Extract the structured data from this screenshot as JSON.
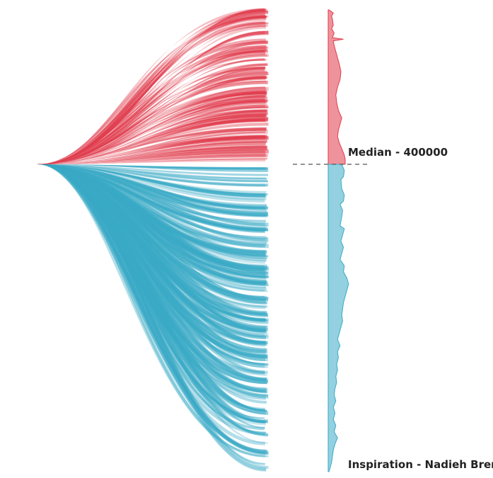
{
  "chart_data": {
    "type": "area",
    "median_label": "Median - 400000",
    "credit_label": "Inspiration - Nadieh Bremer",
    "median_value": 400000,
    "colors": {
      "above_median": "#e03a4b",
      "below_median": "#3aaac6",
      "median_line": "#555555",
      "text": "#222222"
    },
    "above_median": {
      "stream_count": 150,
      "end_fractions": [
        0.0,
        0.02,
        0.05,
        0.09,
        0.11,
        0.15,
        0.18,
        0.21,
        0.25,
        0.27,
        0.3,
        0.33,
        0.36,
        0.39,
        0.42,
        0.45,
        0.48,
        0.52,
        0.55,
        0.58,
        0.61,
        0.64,
        0.67,
        0.7,
        0.73,
        0.76,
        0.79,
        0.82,
        0.85,
        0.88,
        0.91,
        0.94,
        0.97,
        1.0
      ],
      "end_weights": [
        0.5,
        0.6,
        1.0,
        0.5,
        0.9,
        1.2,
        0.6,
        0.8,
        0.7,
        1.1,
        0.6,
        0.9,
        1.3,
        0.7,
        0.9,
        1.0,
        0.8,
        1.1,
        0.9,
        1.0,
        0.8,
        1.2,
        1.0,
        0.9,
        1.1,
        0.8,
        1.0,
        0.9,
        1.2,
        1.0,
        1.1,
        0.9,
        1.0,
        0.8
      ]
    },
    "below_median": {
      "stream_count": 260,
      "end_fractions": [
        0.0,
        0.03,
        0.05,
        0.08,
        0.1,
        0.13,
        0.15,
        0.18,
        0.2,
        0.23,
        0.25,
        0.28,
        0.3,
        0.33,
        0.35,
        0.38,
        0.4,
        0.43,
        0.45,
        0.48,
        0.5,
        0.53,
        0.55,
        0.58,
        0.6,
        0.62,
        0.65,
        0.68,
        0.7,
        0.73,
        0.75,
        0.78,
        0.8,
        0.83,
        0.85,
        0.88,
        0.9,
        0.93,
        0.95,
        0.98,
        1.0
      ],
      "end_weights": [
        1.2,
        1.0,
        1.1,
        1.0,
        1.0,
        1.2,
        0.9,
        1.0,
        1.1,
        0.9,
        1.0,
        1.1,
        1.0,
        0.9,
        1.1,
        1.0,
        1.0,
        1.2,
        1.0,
        1.1,
        1.0,
        0.9,
        1.0,
        1.0,
        0.8,
        0.9,
        1.0,
        0.7,
        0.9,
        0.6,
        0.8,
        0.6,
        0.7,
        0.5,
        0.6,
        0.5,
        0.6,
        0.5,
        0.5,
        0.4,
        0.4
      ]
    },
    "density_above": [
      {
        "y": 0.0,
        "w": 0.05
      },
      {
        "y": 0.02,
        "w": 0.3
      },
      {
        "y": 0.04,
        "w": 0.2
      },
      {
        "y": 0.06,
        "w": 0.25
      },
      {
        "y": 0.1,
        "w": 0.3
      },
      {
        "y": 0.12,
        "w": 0.2
      },
      {
        "y": 0.15,
        "w": 0.35
      },
      {
        "y": 0.18,
        "w": 0.25
      },
      {
        "y": 0.19,
        "w": 0.9
      },
      {
        "y": 0.2,
        "w": 0.3
      },
      {
        "y": 0.23,
        "w": 0.35
      },
      {
        "y": 0.27,
        "w": 0.45
      },
      {
        "y": 0.31,
        "w": 0.55
      },
      {
        "y": 0.35,
        "w": 0.65
      },
      {
        "y": 0.4,
        "w": 0.75
      },
      {
        "y": 0.45,
        "w": 0.7
      },
      {
        "y": 0.5,
        "w": 0.55
      },
      {
        "y": 0.55,
        "w": 0.45
      },
      {
        "y": 0.6,
        "w": 0.5
      },
      {
        "y": 0.65,
        "w": 0.6
      },
      {
        "y": 0.7,
        "w": 0.8
      },
      {
        "y": 0.74,
        "w": 0.7
      },
      {
        "y": 0.78,
        "w": 0.6
      },
      {
        "y": 0.82,
        "w": 0.55
      },
      {
        "y": 0.86,
        "w": 0.65
      },
      {
        "y": 0.9,
        "w": 0.8
      },
      {
        "y": 0.94,
        "w": 0.95
      },
      {
        "y": 0.97,
        "w": 1.0
      },
      {
        "y": 1.0,
        "w": 1.0
      }
    ],
    "density_below": [
      {
        "y": 0.0,
        "w": 0.8
      },
      {
        "y": 0.02,
        "w": 0.95
      },
      {
        "y": 0.04,
        "w": 0.9
      },
      {
        "y": 0.05,
        "w": 0.75
      },
      {
        "y": 0.08,
        "w": 0.8
      },
      {
        "y": 0.1,
        "w": 0.95
      },
      {
        "y": 0.12,
        "w": 0.9
      },
      {
        "y": 0.13,
        "w": 0.7
      },
      {
        "y": 0.15,
        "w": 0.85
      },
      {
        "y": 0.17,
        "w": 0.8
      },
      {
        "y": 0.2,
        "w": 0.7
      },
      {
        "y": 0.21,
        "w": 0.95
      },
      {
        "y": 0.23,
        "w": 0.85
      },
      {
        "y": 0.25,
        "w": 0.75
      },
      {
        "y": 0.27,
        "w": 0.9
      },
      {
        "y": 0.29,
        "w": 0.8
      },
      {
        "y": 0.31,
        "w": 0.7
      },
      {
        "y": 0.33,
        "w": 0.95
      },
      {
        "y": 0.35,
        "w": 0.9
      },
      {
        "y": 0.37,
        "w": 1.1
      },
      {
        "y": 0.39,
        "w": 1.2
      },
      {
        "y": 0.41,
        "w": 1.1
      },
      {
        "y": 0.43,
        "w": 1.0
      },
      {
        "y": 0.45,
        "w": 0.9
      },
      {
        "y": 0.47,
        "w": 0.85
      },
      {
        "y": 0.49,
        "w": 0.8
      },
      {
        "y": 0.51,
        "w": 0.85
      },
      {
        "y": 0.53,
        "w": 0.75
      },
      {
        "y": 0.55,
        "w": 0.65
      },
      {
        "y": 0.57,
        "w": 0.55
      },
      {
        "y": 0.59,
        "w": 0.7
      },
      {
        "y": 0.61,
        "w": 0.55
      },
      {
        "y": 0.63,
        "w": 0.6
      },
      {
        "y": 0.65,
        "w": 0.5
      },
      {
        "y": 0.67,
        "w": 0.55
      },
      {
        "y": 0.69,
        "w": 0.45
      },
      {
        "y": 0.71,
        "w": 0.5
      },
      {
        "y": 0.73,
        "w": 0.4
      },
      {
        "y": 0.75,
        "w": 0.35
      },
      {
        "y": 0.77,
        "w": 0.45
      },
      {
        "y": 0.79,
        "w": 0.3
      },
      {
        "y": 0.81,
        "w": 0.4
      },
      {
        "y": 0.83,
        "w": 0.3
      },
      {
        "y": 0.85,
        "w": 0.45
      },
      {
        "y": 0.87,
        "w": 0.35
      },
      {
        "y": 0.89,
        "w": 0.55
      },
      {
        "y": 0.91,
        "w": 0.4
      },
      {
        "y": 0.93,
        "w": 0.3
      },
      {
        "y": 0.95,
        "w": 0.25
      },
      {
        "y": 0.97,
        "w": 0.2
      },
      {
        "y": 0.99,
        "w": 0.1
      },
      {
        "y": 1.0,
        "w": 0.05
      }
    ]
  }
}
